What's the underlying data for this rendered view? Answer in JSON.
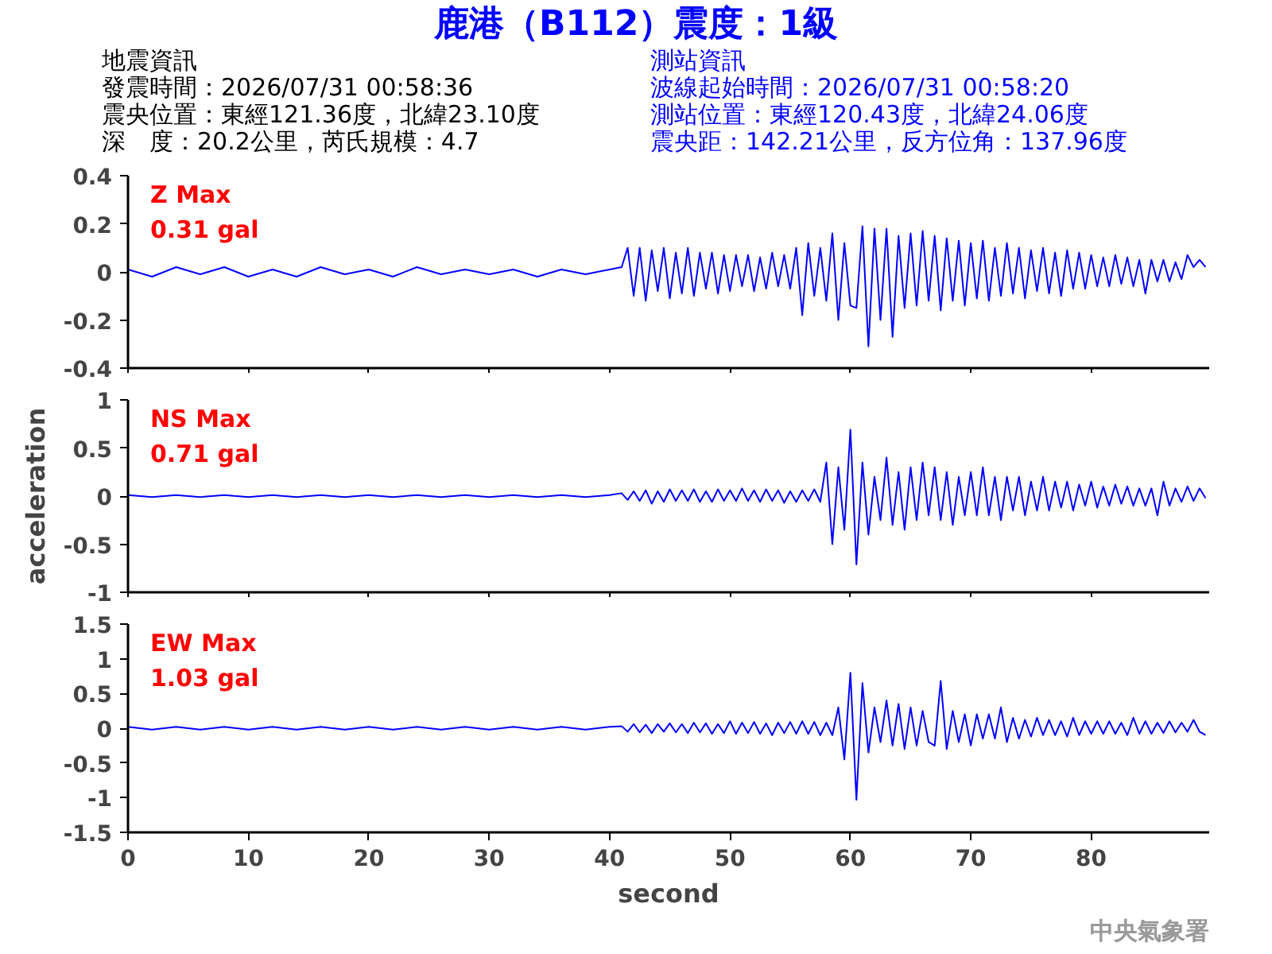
{
  "chart_data": [
    {
      "type": "line",
      "title": "鹿港（B112）震度：1級",
      "annotations": [
        "Z Max",
        "0.31 gal",
        "地震資訊",
        "發震時間：2026/07/31 00:58:36",
        "震央位置：東經121.36度，北緯23.10度",
        "深　度：20.2公里，芮氏規模：4.7",
        "測站資訊",
        "波線起始時間：2026/07/31 00:58:20",
        "測站位置：東經120.43度，北緯24.06度",
        "震央距：142.21公里，反方位角：137.96度"
      ],
      "x": [
        0,
        2,
        4,
        6,
        8,
        10,
        12,
        14,
        16,
        18,
        20,
        22,
        24,
        26,
        28,
        30,
        32,
        34,
        36,
        38,
        40,
        41,
        41.5,
        42,
        42.5,
        43,
        43.5,
        44,
        44.5,
        45,
        45.5,
        46,
        46.5,
        47,
        47.5,
        48,
        48.5,
        49,
        49.5,
        50,
        50.5,
        51,
        51.5,
        52,
        52.5,
        53,
        53.5,
        54,
        54.5,
        55,
        55.5,
        56,
        56.5,
        57,
        57.5,
        58,
        58.5,
        59,
        59.5,
        60,
        60.5,
        61,
        61.5,
        62,
        62.5,
        63,
        63.5,
        64,
        64.5,
        65,
        65.5,
        66,
        66.5,
        67,
        67.5,
        68,
        68.5,
        69,
        69.5,
        70,
        70.5,
        71,
        71.5,
        72,
        72.5,
        73,
        73.5,
        74,
        74.5,
        75,
        75.5,
        76,
        76.5,
        77,
        77.5,
        78,
        78.5,
        79,
        79.5,
        80,
        80.5,
        81,
        81.5,
        82,
        82.5,
        83,
        83.5,
        84,
        84.5,
        85,
        85.5,
        86,
        86.5,
        87,
        87.5,
        88,
        88.5,
        89,
        89.5
      ],
      "series": [
        {
          "color": "#0000ff",
          "values": [
            0.01,
            -0.02,
            0.02,
            -0.01,
            0.02,
            -0.02,
            0.01,
            -0.02,
            0.02,
            -0.01,
            0.01,
            -0.02,
            0.02,
            -0.01,
            0.01,
            -0.01,
            0.01,
            -0.02,
            0.01,
            -0.01,
            0.01,
            0.02,
            0.1,
            -0.1,
            0.1,
            -0.12,
            0.09,
            -0.08,
            0.1,
            -0.11,
            0.08,
            -0.09,
            0.1,
            -0.1,
            0.08,
            -0.07,
            0.08,
            -0.09,
            0.07,
            -0.08,
            0.07,
            -0.06,
            0.07,
            -0.08,
            0.06,
            -0.07,
            0.08,
            -0.06,
            0.07,
            -0.07,
            0.1,
            -0.18,
            0.12,
            -0.1,
            0.1,
            -0.12,
            0.16,
            -0.2,
            0.12,
            -0.14,
            -0.15,
            0.19,
            -0.31,
            0.18,
            -0.2,
            0.18,
            -0.27,
            0.15,
            -0.15,
            0.16,
            -0.14,
            0.17,
            -0.12,
            0.15,
            -0.16,
            0.14,
            -0.12,
            0.13,
            -0.14,
            0.12,
            -0.11,
            0.13,
            -0.12,
            0.1,
            -0.1,
            0.12,
            -0.09,
            0.1,
            -0.11,
            0.09,
            -0.08,
            0.1,
            -0.09,
            0.08,
            -0.1,
            0.09,
            -0.07,
            0.08,
            -0.07,
            0.07,
            -0.06,
            0.06,
            -0.06,
            0.07,
            -0.05,
            0.06,
            -0.06,
            0.05,
            -0.09,
            0.05,
            -0.04,
            0.05,
            -0.04,
            0.04,
            -0.03,
            0.07,
            0.02,
            0.05,
            0.02
          ]
        }
      ],
      "xlim": [
        0,
        89.8
      ],
      "xticks": [
        0,
        10,
        20,
        30,
        40,
        50,
        60,
        70,
        80
      ],
      "ylim": [
        -0.4,
        0.4
      ],
      "yticks": [
        -0.4,
        -0.2,
        0,
        0.2,
        0.4
      ],
      "tick_labels": "y",
      "grid": false
    },
    {
      "type": "line",
      "ylabel": "acceleration",
      "annotations": [
        "NS Max",
        "0.71 gal"
      ],
      "x": [
        0,
        2,
        4,
        6,
        8,
        10,
        12,
        14,
        16,
        18,
        20,
        22,
        24,
        26,
        28,
        30,
        32,
        34,
        36,
        38,
        40,
        41,
        41.5,
        42,
        42.5,
        43,
        43.5,
        44,
        44.5,
        45,
        45.5,
        46,
        46.5,
        47,
        47.5,
        48,
        48.5,
        49,
        49.5,
        50,
        50.5,
        51,
        51.5,
        52,
        52.5,
        53,
        53.5,
        54,
        54.5,
        55,
        55.5,
        56,
        56.5,
        57,
        57.5,
        58,
        58.5,
        59,
        59.5,
        60,
        60.5,
        61,
        61.5,
        62,
        62.5,
        63,
        63.5,
        64,
        64.5,
        65,
        65.5,
        66,
        66.5,
        67,
        67.5,
        68,
        68.5,
        69,
        69.5,
        70,
        70.5,
        71,
        71.5,
        72,
        72.5,
        73,
        73.5,
        74,
        74.5,
        75,
        75.5,
        76,
        76.5,
        77,
        77.5,
        78,
        78.5,
        79,
        79.5,
        80,
        80.5,
        81,
        81.5,
        82,
        82.5,
        83,
        83.5,
        84,
        84.5,
        85,
        85.5,
        86,
        86.5,
        87,
        87.5,
        88,
        88.5,
        89,
        89.5
      ],
      "series": [
        {
          "color": "#0000ff",
          "values": [
            0.01,
            -0.01,
            0.01,
            -0.01,
            0.01,
            -0.01,
            0.01,
            -0.01,
            0.01,
            -0.01,
            0.01,
            -0.01,
            0.01,
            -0.01,
            0.01,
            -0.01,
            0.01,
            -0.01,
            0.01,
            -0.01,
            0.01,
            0.03,
            -0.04,
            0.05,
            -0.05,
            0.06,
            -0.08,
            0.05,
            -0.06,
            0.07,
            -0.05,
            0.06,
            -0.05,
            0.07,
            -0.06,
            0.05,
            -0.06,
            0.07,
            -0.05,
            0.06,
            -0.05,
            0.08,
            -0.05,
            0.06,
            -0.06,
            0.07,
            -0.05,
            0.06,
            -0.07,
            0.05,
            -0.06,
            0.06,
            -0.05,
            0.07,
            -0.06,
            0.35,
            -0.5,
            0.3,
            -0.35,
            0.69,
            -0.71,
            0.35,
            -0.4,
            0.2,
            -0.25,
            0.4,
            -0.3,
            0.25,
            -0.35,
            0.3,
            -0.25,
            0.35,
            -0.2,
            0.3,
            -0.25,
            0.25,
            -0.3,
            0.2,
            -0.2,
            0.25,
            -0.2,
            0.3,
            -0.2,
            0.2,
            -0.25,
            0.2,
            -0.15,
            0.2,
            -0.2,
            0.15,
            -0.15,
            0.2,
            -0.15,
            0.15,
            -0.12,
            0.15,
            -0.15,
            0.12,
            -0.1,
            0.15,
            -0.12,
            0.1,
            -0.1,
            0.12,
            -0.08,
            0.1,
            -0.1,
            0.08,
            -0.1,
            0.08,
            -0.2,
            0.15,
            -0.1,
            0.08,
            -0.06,
            0.1,
            -0.05,
            0.08,
            -0.02
          ]
        }
      ],
      "xlim": [
        0,
        89.8
      ],
      "xticks": [
        0,
        10,
        20,
        30,
        40,
        50,
        60,
        70,
        80
      ],
      "ylim": [
        -1,
        1
      ],
      "yticks": [
        -1,
        -0.5,
        0,
        0.5,
        1
      ],
      "tick_labels": "y",
      "grid": false
    },
    {
      "type": "line",
      "xlabel": "second",
      "annotations": [
        "EW Max",
        "1.03 gal",
        "中央氣象署"
      ],
      "x": [
        0,
        2,
        4,
        6,
        8,
        10,
        12,
        14,
        16,
        18,
        20,
        22,
        24,
        26,
        28,
        30,
        32,
        34,
        36,
        38,
        40,
        41,
        41.5,
        42,
        42.5,
        43,
        43.5,
        44,
        44.5,
        45,
        45.5,
        46,
        46.5,
        47,
        47.5,
        48,
        48.5,
        49,
        49.5,
        50,
        50.5,
        51,
        51.5,
        52,
        52.5,
        53,
        53.5,
        54,
        54.5,
        55,
        55.5,
        56,
        56.5,
        57,
        57.5,
        58,
        58.5,
        59,
        59.5,
        60,
        60.5,
        61,
        61.5,
        62,
        62.5,
        63,
        63.5,
        64,
        64.5,
        65,
        65.5,
        66,
        66.5,
        67,
        67.5,
        68,
        68.5,
        69,
        69.5,
        70,
        70.5,
        71,
        71.5,
        72,
        72.5,
        73,
        73.5,
        74,
        74.5,
        75,
        75.5,
        76,
        76.5,
        77,
        77.5,
        78,
        78.5,
        79,
        79.5,
        80,
        80.5,
        81,
        81.5,
        82,
        82.5,
        83,
        83.5,
        84,
        84.5,
        85,
        85.5,
        86,
        86.5,
        87,
        87.5,
        88,
        88.5,
        89,
        89.5
      ],
      "series": [
        {
          "color": "#0000ff",
          "values": [
            0.02,
            -0.02,
            0.02,
            -0.02,
            0.02,
            -0.02,
            0.02,
            -0.02,
            0.02,
            -0.02,
            0.02,
            -0.02,
            0.02,
            -0.02,
            0.02,
            -0.02,
            0.02,
            -0.02,
            0.02,
            -0.02,
            0.02,
            0.03,
            -0.05,
            0.06,
            -0.06,
            0.05,
            -0.07,
            0.06,
            -0.05,
            0.07,
            -0.06,
            0.06,
            -0.07,
            0.08,
            -0.06,
            0.07,
            -0.08,
            0.06,
            -0.07,
            0.1,
            -0.08,
            0.08,
            -0.07,
            0.09,
            -0.08,
            0.07,
            -0.1,
            0.08,
            -0.07,
            0.09,
            -0.08,
            0.1,
            -0.08,
            0.09,
            -0.1,
            0.08,
            -0.1,
            0.3,
            -0.45,
            0.8,
            -1.03,
            0.65,
            -0.35,
            0.3,
            -0.2,
            0.4,
            -0.25,
            0.35,
            -0.3,
            0.3,
            -0.25,
            0.25,
            -0.2,
            -0.25,
            0.68,
            -0.3,
            0.25,
            -0.2,
            0.2,
            -0.25,
            0.2,
            -0.15,
            0.2,
            -0.15,
            0.3,
            -0.2,
            0.15,
            -0.15,
            0.12,
            -0.12,
            0.15,
            -0.1,
            0.12,
            -0.1,
            0.1,
            -0.12,
            0.15,
            -0.1,
            0.1,
            -0.08,
            0.1,
            -0.08,
            0.1,
            -0.08,
            0.08,
            -0.1,
            0.15,
            -0.08,
            0.1,
            -0.08,
            0.08,
            -0.07,
            0.1,
            -0.06,
            0.08,
            -0.05,
            0.12,
            -0.05,
            -0.1
          ]
        }
      ],
      "xlim": [
        0,
        89.8
      ],
      "xticks": [
        0,
        10,
        20,
        30,
        40,
        50,
        60,
        70,
        80
      ],
      "ylim": [
        -1.5,
        1.5
      ],
      "yticks": [
        -1.5,
        -1,
        -0.5,
        0,
        0.5,
        1,
        1.5
      ],
      "grid": false
    }
  ]
}
